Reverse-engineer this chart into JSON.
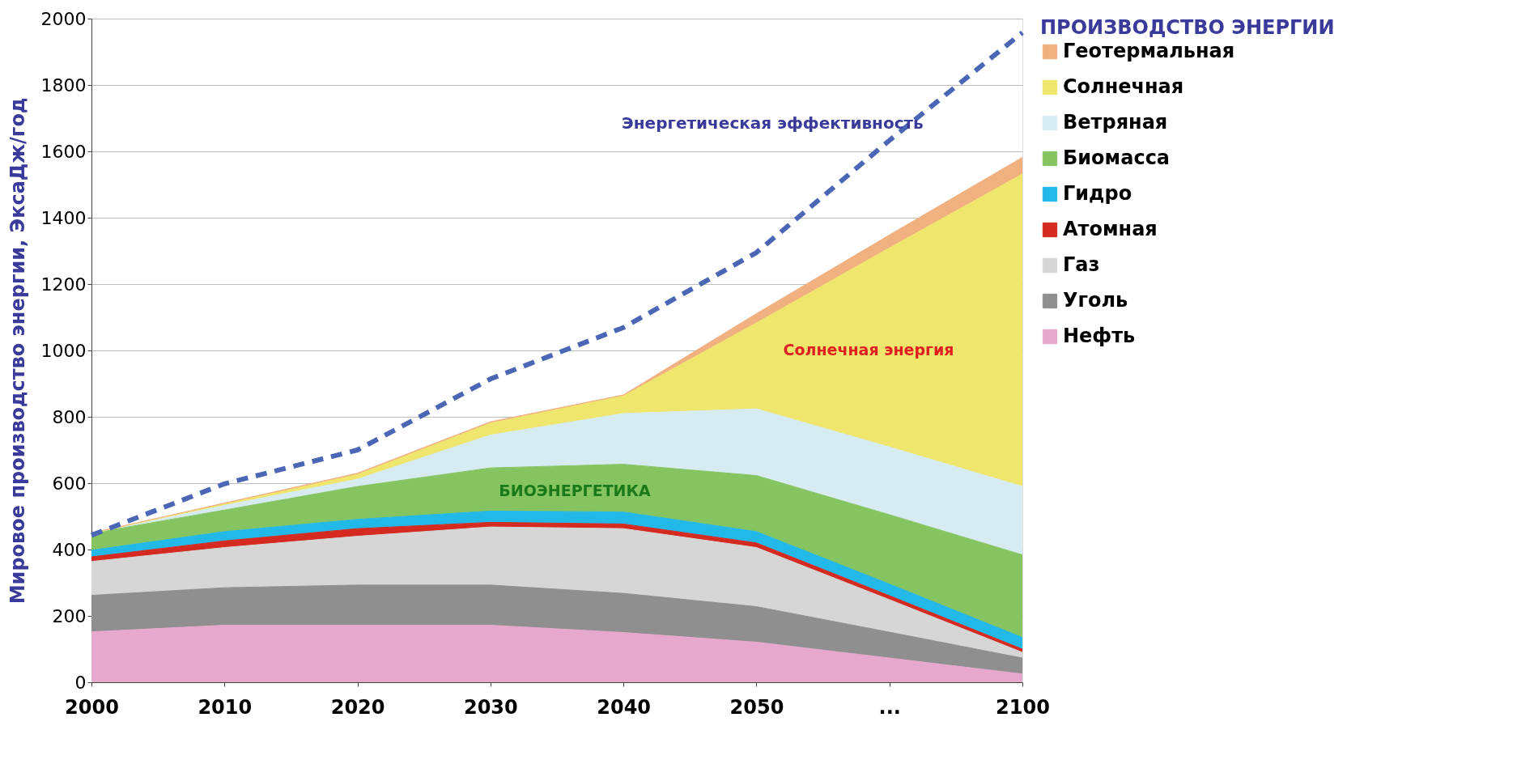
{
  "chart_data": {
    "type": "area",
    "stacked": true,
    "ylabel": "Мировое производство энергии, ЭксаДж/год",
    "legend_title": "ПРОИЗВОДСТВО ЭНЕРГИИ",
    "legend": "right",
    "grid": "y",
    "categories": [
      "2000",
      "2010",
      "2020",
      "2030",
      "2040",
      "2050",
      "...",
      "2100"
    ],
    "ylim": [
      0,
      2000
    ],
    "yticks": [
      0,
      200,
      400,
      600,
      800,
      1000,
      1200,
      1400,
      1600,
      1800,
      2000
    ],
    "series": [
      {
        "name": "Нефть",
        "color": "#e6a8cc",
        "values": [
          152,
          172,
          172,
          172,
          150,
          121,
          73,
          25
        ]
      },
      {
        "name": "Уголь",
        "color": "#8f8f8f",
        "values": [
          110,
          113,
          121,
          121,
          118,
          107,
          78,
          48
        ]
      },
      {
        "name": "Газ",
        "color": "#d6d6d6",
        "values": [
          102,
          121,
          147,
          175,
          195,
          178,
          98,
          17
        ]
      },
      {
        "name": "Атомная",
        "color": "#d42a20",
        "values": [
          14,
          20,
          23,
          14,
          14,
          14,
          12,
          10
        ]
      },
      {
        "name": "Гидро",
        "color": "#22b8e8",
        "values": [
          20,
          28,
          28,
          34,
          36,
          34,
          35,
          35
        ]
      },
      {
        "name": "Биомасса",
        "color": "#86c462",
        "values": [
          51,
          65,
          99,
          130,
          144,
          169,
          209,
          249
        ]
      },
      {
        "name": "Ветряная",
        "color": "#d6ecf2",
        "values": [
          0,
          14,
          22,
          99,
          153,
          201,
          204,
          206
        ]
      },
      {
        "name": "Солнечная",
        "color": "#efe66e",
        "values": [
          0,
          4,
          14,
          36,
          53,
          259,
          600,
          942
        ]
      },
      {
        "name": "Геотермальная",
        "color": "#f0b080",
        "values": [
          1,
          3,
          4,
          4,
          3,
          28,
          39,
          50
        ]
      },
      {
        "name": "Энергетическая эффективность",
        "type": "line",
        "line_style": "dashed",
        "color": "#4a66b4",
        "values": [
          443,
          598,
          700,
          914,
          1069,
          1295,
          1633,
          1958
        ]
      }
    ],
    "annotations": [
      "Солнечная энергия",
      "БИОЭНЕРГЕТИКА"
    ]
  }
}
